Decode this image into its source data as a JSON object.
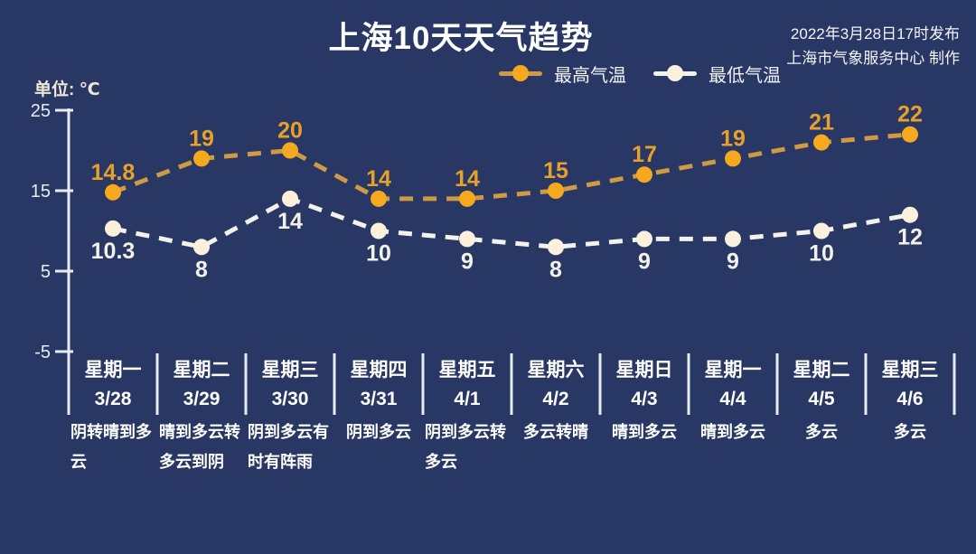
{
  "title": "上海10天天气趋势",
  "publish_info": {
    "line1": "2022年3月28日17时发布",
    "line2": "上海市气象服务中心 制作"
  },
  "unit_label": "单位: ℃",
  "chart_data": {
    "type": "line",
    "title": "上海10天天气趋势",
    "categories": [
      "3/28",
      "3/29",
      "3/30",
      "3/31",
      "4/1",
      "4/2",
      "4/3",
      "4/4",
      "4/5",
      "4/6"
    ],
    "series": [
      {
        "name": "最高气温",
        "values": [
          14.8,
          19,
          20,
          14,
          14,
          15,
          17,
          19,
          21,
          22
        ],
        "line_color": "#ce9a43",
        "marker_color": "#f6a81f",
        "label_color": "#e8a02c"
      },
      {
        "name": "最低气温",
        "values": [
          10.3,
          8,
          14,
          10,
          9,
          8,
          9,
          9,
          10,
          12
        ],
        "line_color": "#f4f2ec",
        "marker_color": "#faf0db",
        "label_color": "#f4f1e8"
      }
    ],
    "ylabel": "单位: ℃",
    "ylim": [
      -5,
      25
    ],
    "yticks": [
      25,
      15,
      5,
      -5
    ],
    "grid": false,
    "line_style": "dashed",
    "legend_position": "top-center"
  },
  "days": [
    {
      "weekday": "星期一",
      "date": "3/28",
      "weather": "阴转晴到多云"
    },
    {
      "weekday": "星期二",
      "date": "3/29",
      "weather": "晴到多云转多云到阴"
    },
    {
      "weekday": "星期三",
      "date": "3/30",
      "weather": "阴到多云有时有阵雨"
    },
    {
      "weekday": "星期四",
      "date": "3/31",
      "weather": "阴到多云"
    },
    {
      "weekday": "星期五",
      "date": "4/1",
      "weather": "阴到多云转多云"
    },
    {
      "weekday": "星期六",
      "date": "4/2",
      "weather": "多云转晴"
    },
    {
      "weekday": "星期日",
      "date": "4/3",
      "weather": "晴到多云"
    },
    {
      "weekday": "星期一",
      "date": "4/4",
      "weather": "晴到多云"
    },
    {
      "weekday": "星期二",
      "date": "4/5",
      "weather": "多云"
    },
    {
      "weekday": "星期三",
      "date": "4/6",
      "weather": "多云"
    }
  ],
  "colors": {
    "background": "#283763",
    "axis": "#e8ecf2",
    "title_text": "#ffffff"
  }
}
